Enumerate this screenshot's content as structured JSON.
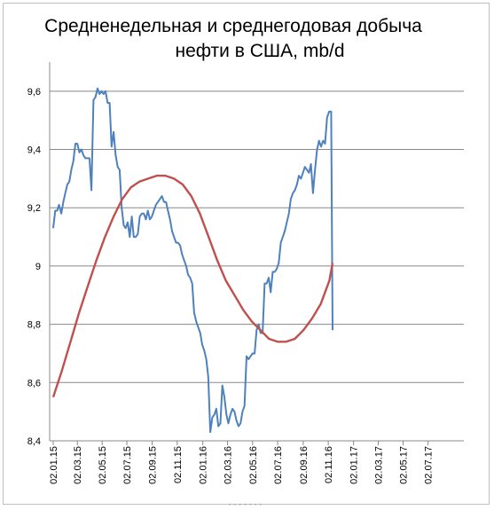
{
  "chart_data": {
    "type": "line",
    "title_line1": "Средненедельная и среднегодовая  добыча",
    "title_line2": "нефти в США, mb/d",
    "xlabel": "",
    "ylabel": "",
    "ylim": [
      8.4,
      9.7
    ],
    "y_ticks": [
      "8,4",
      "8,6",
      "8,8",
      "9",
      "9,2",
      "9,4",
      "9,6"
    ],
    "y_tick_values": [
      8.4,
      8.6,
      8.8,
      9.0,
      9.2,
      9.4,
      9.6
    ],
    "x_ticks": [
      "02.01.15",
      "02.03.15",
      "02.05.15",
      "02.07.15",
      "02.09.15",
      "02.11.15",
      "02.01.16",
      "02.03.16",
      "02.05.16",
      "02.07.16",
      "02.09.16",
      "02.11.16",
      "02.01.17",
      "02.03.17",
      "02.05.17",
      "02.07.17"
    ],
    "x_tick_weeks": [
      0,
      8.4,
      17,
      25.6,
      34.4,
      43.1,
      52,
      60.6,
      69.3,
      78,
      86.9,
      95.6,
      104.4,
      113,
      121.6,
      130.3
    ],
    "x_range_weeks": [
      0,
      141.5
    ],
    "grid": "horizontal",
    "legend": "none",
    "series": [
      {
        "color": "#4f81bd",
        "points": [
          [
            0,
            9.13
          ],
          [
            0.7,
            9.19
          ],
          [
            1.4,
            9.19
          ],
          [
            2,
            9.21
          ],
          [
            2.8,
            9.18
          ],
          [
            3.5,
            9.22
          ],
          [
            4.2,
            9.25
          ],
          [
            4.9,
            9.28
          ],
          [
            5.6,
            9.29
          ],
          [
            6.3,
            9.33
          ],
          [
            7,
            9.36
          ],
          [
            7.7,
            9.42
          ],
          [
            8.4,
            9.42
          ],
          [
            9.1,
            9.39
          ],
          [
            9.8,
            9.4
          ],
          [
            10.5,
            9.38
          ],
          [
            11.2,
            9.37
          ],
          [
            11.9,
            9.37
          ],
          [
            12.6,
            9.37
          ],
          [
            13.3,
            9.26
          ],
          [
            14,
            9.57
          ],
          [
            14.7,
            9.58
          ],
          [
            15.4,
            9.61
          ],
          [
            16.1,
            9.59
          ],
          [
            16.8,
            9.6
          ],
          [
            17.5,
            9.59
          ],
          [
            18.2,
            9.6
          ],
          [
            18.9,
            9.56
          ],
          [
            19.6,
            9.56
          ],
          [
            20.3,
            9.41
          ],
          [
            21,
            9.46
          ],
          [
            21.7,
            9.38
          ],
          [
            22.4,
            9.34
          ],
          [
            23.1,
            9.33
          ],
          [
            23.8,
            9.2
          ],
          [
            24.5,
            9.14
          ],
          [
            25.2,
            9.13
          ],
          [
            25.9,
            9.15
          ],
          [
            26.6,
            9.1
          ],
          [
            27.3,
            9.17
          ],
          [
            28,
            9.1
          ],
          [
            28.7,
            9.1
          ],
          [
            29.4,
            9.11
          ],
          [
            30.1,
            9.17
          ],
          [
            30.8,
            9.18
          ],
          [
            31.5,
            9.18
          ],
          [
            32.2,
            9.16
          ],
          [
            32.9,
            9.19
          ],
          [
            33.6,
            9.16
          ],
          [
            34.3,
            9.17
          ],
          [
            35,
            9.19
          ],
          [
            35.7,
            9.21
          ],
          [
            36.4,
            9.22
          ],
          [
            37.1,
            9.23
          ],
          [
            37.8,
            9.24
          ],
          [
            38.5,
            9.22
          ],
          [
            39.2,
            9.22
          ],
          [
            39.9,
            9.19
          ],
          [
            40.6,
            9.16
          ],
          [
            41.3,
            9.12
          ],
          [
            42,
            9.1
          ],
          [
            42.7,
            9.08
          ],
          [
            43.4,
            9.08
          ],
          [
            44.1,
            9.07
          ],
          [
            44.8,
            9.04
          ],
          [
            45.5,
            9.02
          ],
          [
            46.2,
            9.0
          ],
          [
            46.9,
            8.97
          ],
          [
            47.6,
            8.96
          ],
          [
            48.3,
            8.94
          ],
          [
            49,
            8.84
          ],
          [
            49.7,
            8.81
          ],
          [
            50.4,
            8.79
          ],
          [
            51.1,
            8.77
          ],
          [
            51.8,
            8.73
          ],
          [
            52.5,
            8.71
          ],
          [
            53.2,
            8.68
          ],
          [
            53.9,
            8.62
          ],
          [
            54.6,
            8.43
          ],
          [
            55.3,
            8.48
          ],
          [
            56,
            8.49
          ],
          [
            56.7,
            8.51
          ],
          [
            57.4,
            8.45
          ],
          [
            58.1,
            8.46
          ],
          [
            58.8,
            8.59
          ],
          [
            59.5,
            8.55
          ],
          [
            60.2,
            8.49
          ],
          [
            60.9,
            8.46
          ],
          [
            61.6,
            8.49
          ],
          [
            62.3,
            8.51
          ],
          [
            63,
            8.5
          ],
          [
            63.7,
            8.47
          ],
          [
            64.4,
            8.45
          ],
          [
            65.1,
            8.46
          ],
          [
            65.8,
            8.5
          ],
          [
            66.5,
            8.52
          ],
          [
            67.2,
            8.69
          ],
          [
            67.9,
            8.68
          ],
          [
            68.6,
            8.69
          ],
          [
            69.3,
            8.7
          ],
          [
            70,
            8.7
          ],
          [
            70.7,
            8.78
          ],
          [
            71.4,
            8.8
          ],
          [
            72.1,
            8.77
          ],
          [
            72.8,
            8.77
          ],
          [
            73.5,
            8.94
          ],
          [
            74.2,
            8.94
          ],
          [
            74.9,
            8.96
          ],
          [
            75.6,
            8.91
          ],
          [
            76.3,
            8.98
          ],
          [
            77,
            8.98
          ],
          [
            77.7,
            8.99
          ],
          [
            78.4,
            9.01
          ],
          [
            79.1,
            9.08
          ],
          [
            79.8,
            9.1
          ],
          [
            80.5,
            9.12
          ],
          [
            81.2,
            9.15
          ],
          [
            81.9,
            9.18
          ],
          [
            82.6,
            9.23
          ],
          [
            83.3,
            9.25
          ],
          [
            84,
            9.26
          ],
          [
            84.7,
            9.28
          ],
          [
            85.4,
            9.31
          ],
          [
            86.1,
            9.3
          ],
          [
            86.8,
            9.32
          ],
          [
            87.5,
            9.34
          ],
          [
            88.2,
            9.33
          ],
          [
            88.9,
            9.32
          ],
          [
            89.6,
            9.35
          ],
          [
            90.3,
            9.25
          ],
          [
            91,
            9.33
          ],
          [
            91.7,
            9.4
          ],
          [
            92.4,
            9.43
          ],
          [
            93.1,
            9.41
          ],
          [
            93.8,
            9.43
          ],
          [
            94.5,
            9.42
          ],
          [
            95.2,
            9.51
          ],
          [
            95.9,
            9.53
          ],
          [
            96.6,
            9.53
          ],
          [
            97.1,
            8.78
          ]
        ]
      },
      {
        "color": "#c0504d",
        "points": [
          [
            0,
            8.55
          ],
          [
            3,
            8.64
          ],
          [
            6,
            8.74
          ],
          [
            9,
            8.84
          ],
          [
            12,
            8.93
          ],
          [
            15,
            9.02
          ],
          [
            18,
            9.1
          ],
          [
            21,
            9.17
          ],
          [
            24,
            9.23
          ],
          [
            27,
            9.27
          ],
          [
            30,
            9.29
          ],
          [
            33,
            9.3
          ],
          [
            36,
            9.31
          ],
          [
            39,
            9.31
          ],
          [
            42,
            9.3
          ],
          [
            45,
            9.28
          ],
          [
            48,
            9.24
          ],
          [
            51,
            9.18
          ],
          [
            54,
            9.1
          ],
          [
            57,
            9.02
          ],
          [
            60,
            8.95
          ],
          [
            63,
            8.9
          ],
          [
            66,
            8.85
          ],
          [
            69,
            8.81
          ],
          [
            72,
            8.78
          ],
          [
            75,
            8.75
          ],
          [
            78,
            8.74
          ],
          [
            81,
            8.74
          ],
          [
            84,
            8.75
          ],
          [
            87,
            8.78
          ],
          [
            90,
            8.82
          ],
          [
            93,
            8.87
          ],
          [
            96,
            8.95
          ],
          [
            97.1,
            9.01
          ]
        ]
      }
    ]
  }
}
